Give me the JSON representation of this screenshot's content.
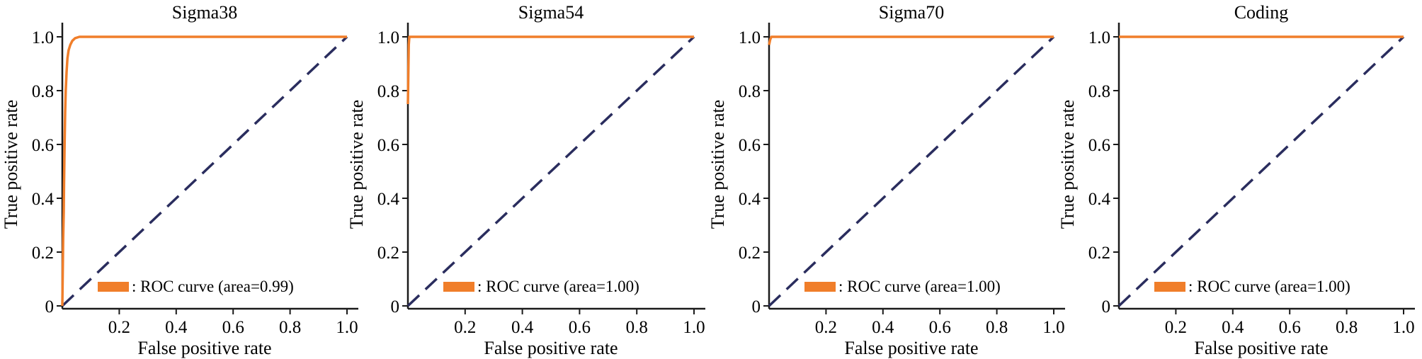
{
  "colors": {
    "roc": "#f07e2a",
    "diagonal": "#2a2d5e",
    "axis": "#1a1a1a"
  },
  "chart_data": [
    {
      "type": "line",
      "title": "Sigma38",
      "xlabel": "False positive rate",
      "ylabel": "True positive rate",
      "xlim": [
        0,
        1.0
      ],
      "ylim": [
        0,
        1.0
      ],
      "x_ticks": [
        "0.2",
        "0.4",
        "0.6",
        "0.8",
        "1.0"
      ],
      "y_ticks": [
        "0",
        "0.2",
        "0.4",
        "0.6",
        "0.8",
        "1.0"
      ],
      "grid": false,
      "legend_position": "bottom-center",
      "series": [
        {
          "name": ": ROC curve (area=0.99)",
          "x": [
            0,
            0.003,
            0.005,
            0.006,
            0.008,
            0.01,
            0.012,
            0.015,
            0.018,
            0.022,
            0.028,
            0.035,
            0.045,
            0.06,
            1.0
          ],
          "y": [
            0,
            0.25,
            0.35,
            0.45,
            0.6,
            0.72,
            0.8,
            0.87,
            0.92,
            0.95,
            0.97,
            0.985,
            0.995,
            1.0,
            1.0
          ]
        }
      ]
    },
    {
      "type": "line",
      "title": "Sigma54",
      "xlabel": "False positive rate",
      "ylabel": "True positive rate",
      "xlim": [
        0,
        1.0
      ],
      "ylim": [
        0,
        1.0
      ],
      "x_ticks": [
        "0.2",
        "0.4",
        "0.6",
        "0.8",
        "1.0"
      ],
      "y_ticks": [
        "0",
        "0.2",
        "0.4",
        "0.6",
        "0.8",
        "1.0"
      ],
      "grid": false,
      "legend_position": "bottom-center",
      "series": [
        {
          "name": ": ROC curve (area=1.00)",
          "x": [
            0,
            0.002,
            0.003,
            0.005,
            1.0
          ],
          "y": [
            0.75,
            0.9,
            0.97,
            1.0,
            1.0
          ]
        }
      ]
    },
    {
      "type": "line",
      "title": "Sigma70",
      "xlabel": "False positive rate",
      "ylabel": "True positive rate",
      "xlim": [
        0,
        1.0
      ],
      "ylim": [
        0,
        1.0
      ],
      "x_ticks": [
        "0.2",
        "0.4",
        "0.6",
        "0.8",
        "1.0"
      ],
      "y_ticks": [
        "0",
        "0.2",
        "0.4",
        "0.6",
        "0.8",
        "1.0"
      ],
      "grid": false,
      "legend_position": "bottom-center",
      "series": [
        {
          "name": ": ROC curve (area=1.00)",
          "x": [
            0,
            0.002,
            0.004,
            0.008,
            1.0
          ],
          "y": [
            0.97,
            0.98,
            0.99,
            1.0,
            1.0
          ]
        }
      ]
    },
    {
      "type": "line",
      "title": "Coding",
      "xlabel": "False positive rate",
      "ylabel": "True positive rate",
      "xlim": [
        0,
        1.0
      ],
      "ylim": [
        0,
        1.0
      ],
      "x_ticks": [
        "0.2",
        "0.4",
        "0.6",
        "0.8",
        "1.0"
      ],
      "y_ticks": [
        "0",
        "0.2",
        "0.4",
        "0.6",
        "0.8",
        "1.0"
      ],
      "grid": false,
      "legend_position": "bottom-center",
      "series": [
        {
          "name": ": ROC curve (area=1.00)",
          "x": [
            0,
            0.001,
            1.0
          ],
          "y": [
            1.0,
            1.0,
            1.0
          ]
        }
      ]
    }
  ]
}
